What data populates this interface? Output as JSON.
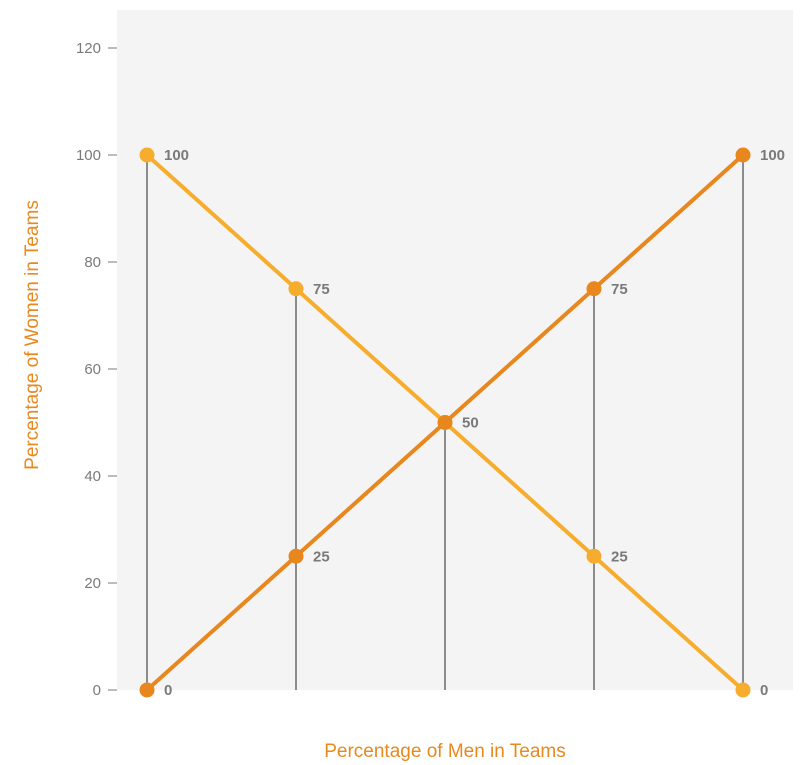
{
  "colors": {
    "plot_background": "#f4f4f4",
    "women_series": "#f6ad2e",
    "men_series": "#e8871e",
    "drop_lines": "#8c8c8c",
    "tick_text": "#7a7a7a",
    "axis_title": "#e8891e"
  },
  "chart_data": {
    "type": "line",
    "title": "",
    "xlabel": "Percentage of Men in Teams",
    "ylabel": "Percentage of Women in Teams",
    "ylim": [
      0,
      120
    ],
    "yticks": [
      0,
      20,
      40,
      60,
      80,
      100,
      120
    ],
    "x": [
      0,
      25,
      50,
      75,
      100
    ],
    "grid": false,
    "legend": "none",
    "drop_lines": true,
    "series": [
      {
        "color": "#f6ad2e",
        "values": [
          100,
          75,
          50,
          25,
          0
        ],
        "labels": [
          "100",
          "75",
          "50",
          "25",
          "0"
        ]
      },
      {
        "color": "#e8871e",
        "values": [
          0,
          25,
          50,
          75,
          100
        ],
        "labels": [
          "0",
          "25",
          "",
          "75",
          "100"
        ]
      }
    ]
  }
}
